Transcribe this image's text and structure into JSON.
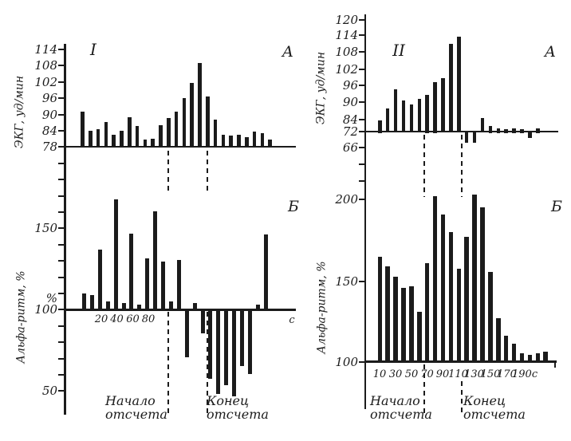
{
  "annotations": {
    "start_line1": "Начало",
    "start_line2": "отсчета",
    "end_line1": "Конец",
    "end_line2": "отсчета"
  },
  "chart_data": [
    {
      "panel": "I-A",
      "type": "bar",
      "title": "I",
      "corner_label": "А",
      "ylabel": "ЭКГ, уд/мин",
      "yticks": [
        "114",
        "108",
        "102",
        "96",
        "90",
        "84",
        "78"
      ],
      "ylim": [
        78,
        114
      ],
      "baseline_value": 78,
      "seconds_per_bar": 10,
      "values": [
        91,
        84,
        84.5,
        87,
        82.5,
        84,
        89,
        85.5,
        80.5,
        81,
        86,
        88.5,
        91,
        96,
        101.5,
        109,
        96.5,
        88,
        82.5,
        82,
        82.5,
        81.5,
        83.5,
        83,
        80.5
      ]
    },
    {
      "panel": "I-B",
      "type": "bar",
      "corner_label": "Б",
      "ylabel": "Альфа-ритм, %",
      "yticks": [
        "150",
        "100",
        "50"
      ],
      "percent_mark": "%",
      "ylim": [
        47,
        170
      ],
      "baseline_value": 100,
      "xticks": [
        "20",
        "40",
        "60",
        "80"
      ],
      "x_unit": "с",
      "seconds_per_bar": 10,
      "values": [
        110,
        109,
        137,
        105,
        168,
        104,
        147,
        103,
        132,
        161,
        130,
        105,
        131,
        71.5,
        104,
        86,
        58,
        49,
        54,
        47.5,
        66,
        61,
        103,
        146.5
      ]
    },
    {
      "panel": "II-A",
      "type": "bar",
      "title": "II",
      "corner_label": "А",
      "ylabel": "ЭКГ, уд/мин",
      "yticks": [
        "120",
        "114",
        "108",
        "102",
        "96",
        "90",
        "84",
        "72",
        "66"
      ],
      "ylim": [
        66,
        120
      ],
      "baseline_value": 72,
      "seconds_per_bar": 10,
      "values": [
        83,
        88,
        95,
        91,
        89.5,
        91.5,
        93,
        97.5,
        99,
        111.5,
        114,
        68,
        68,
        84.5,
        78,
        75,
        74.5,
        75.5,
        74.5,
        70,
        75.5
      ]
    },
    {
      "panel": "II-B",
      "type": "bar",
      "corner_label": "Б",
      "ylabel": "Альфа-ритм, %",
      "yticks": [
        "200",
        "150",
        "100"
      ],
      "ylim": [
        100,
        205
      ],
      "baseline_value": 100,
      "xticks": [
        "10",
        "30",
        "50",
        "70",
        "90",
        "110",
        "130",
        "150",
        "170",
        "190с"
      ],
      "seconds_per_bar": 10,
      "values": [
        165,
        159,
        153,
        146,
        147,
        131,
        161,
        202,
        191,
        180,
        158,
        177,
        203,
        195,
        156,
        127,
        116,
        111,
        105,
        104,
        105,
        106
      ]
    }
  ]
}
